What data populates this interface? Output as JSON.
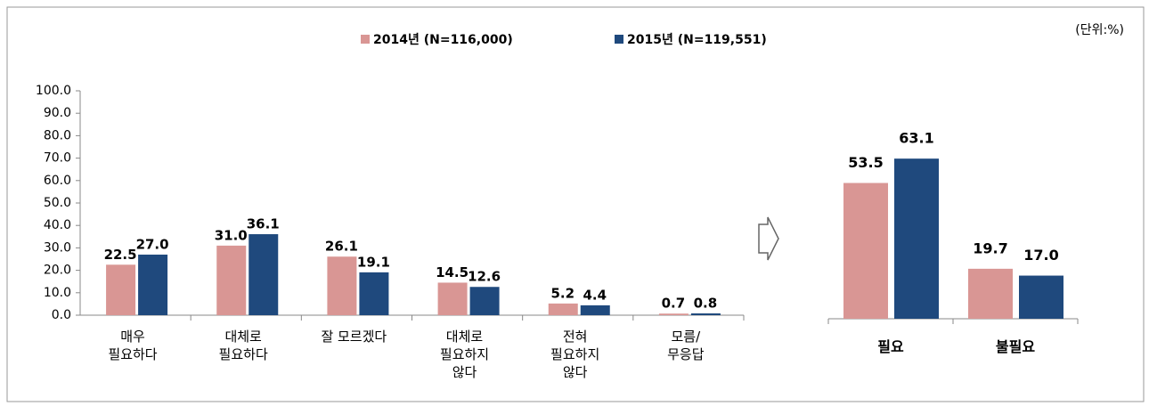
{
  "unit": "(단위:%)",
  "chart_data": [
    {
      "type": "bar",
      "categories": [
        "매우\n필요하다",
        "대체로\n필요하다",
        "잘 모르겠다",
        "대체로\n필요하지\n않다",
        "전혀\n필요하지\n않다",
        "모름/\n무응답"
      ],
      "series": [
        {
          "name": "2014년 (N=116,000)",
          "color": "#d99694",
          "values": [
            22.5,
            31.0,
            26.1,
            14.5,
            5.2,
            0.7
          ],
          "value_labels": [
            "22.5",
            "31.0",
            "26.1",
            "14.5",
            "5.2",
            "0.7"
          ]
        },
        {
          "name": "2015년 (N=119,551)",
          "color": "#1f497d",
          "values": [
            27.0,
            36.1,
            19.1,
            12.6,
            4.4,
            0.8
          ],
          "value_labels": [
            "27.0",
            "36.1",
            "19.1",
            "12.6",
            "4.4",
            "0.8"
          ]
        }
      ],
      "ylim": [
        0,
        100
      ],
      "yticks": [
        {
          "value": 0,
          "label": "0.0"
        },
        {
          "value": 10,
          "label": "10.0"
        },
        {
          "value": 20,
          "label": "20.0"
        },
        {
          "value": 30,
          "label": "30.0"
        },
        {
          "value": 40,
          "label": "40.0"
        },
        {
          "value": 50,
          "label": "50.0"
        },
        {
          "value": 60,
          "label": "60.0"
        },
        {
          "value": 70,
          "label": "70.0"
        },
        {
          "value": 80,
          "label": "80.0"
        },
        {
          "value": 90,
          "label": "90.0"
        },
        {
          "value": 100,
          "label": "100.0"
        }
      ]
    },
    {
      "type": "bar",
      "categories": [
        "필요",
        "불필요"
      ],
      "series": [
        {
          "name": "2014년 (N=116,000)",
          "color": "#d99694",
          "values": [
            53.5,
            19.7
          ],
          "value_labels": [
            "53.5",
            "19.7"
          ]
        },
        {
          "name": "2015년 (N=119,551)",
          "color": "#1f497d",
          "values": [
            63.1,
            17.0
          ],
          "value_labels": [
            "63.1",
            "17.0"
          ]
        }
      ]
    }
  ]
}
